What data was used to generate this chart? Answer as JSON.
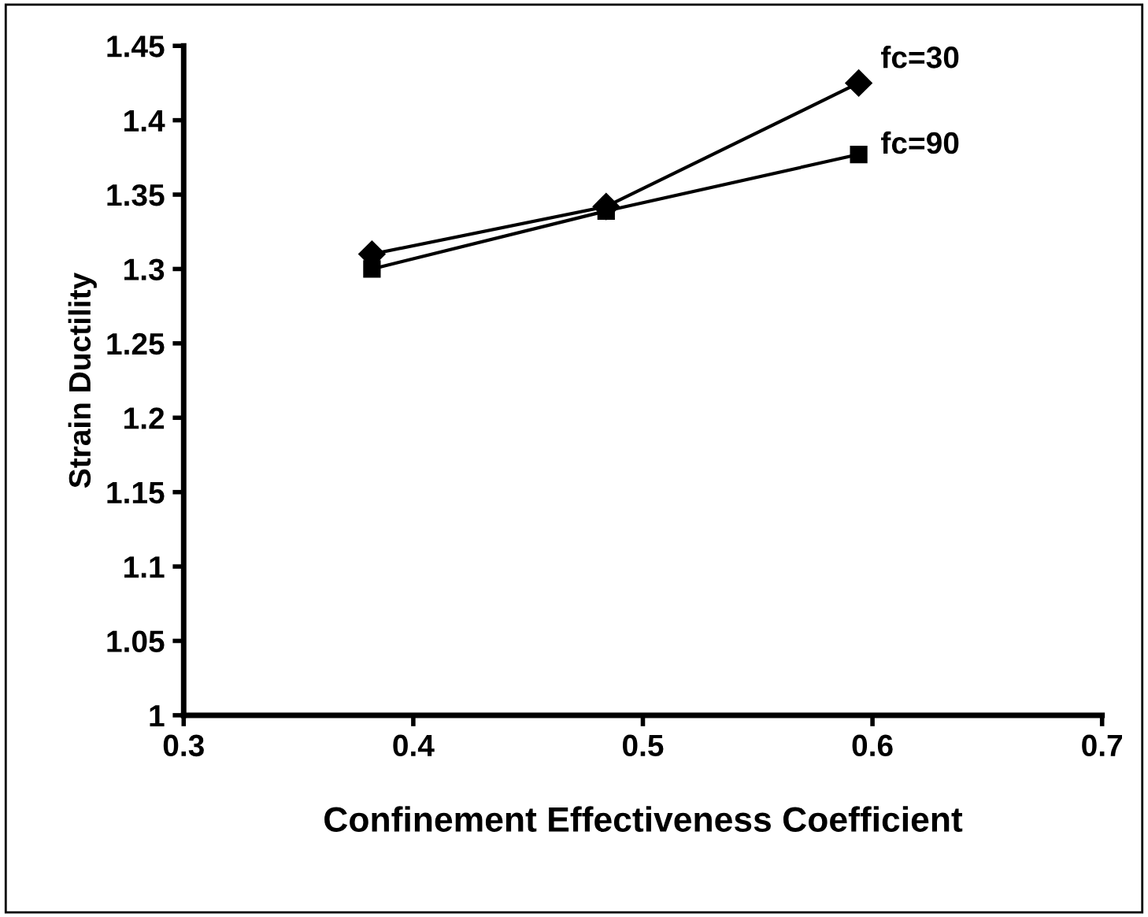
{
  "chart_data": {
    "type": "line",
    "xlabel": "Confinement Effectiveness Coefficient",
    "ylabel": "Strain Ductility",
    "xlim": [
      0.3,
      0.7
    ],
    "xticks": [
      0.3,
      0.4,
      0.5,
      0.6,
      0.7
    ],
    "ylim": [
      1,
      1.45
    ],
    "yticks": [
      1,
      1.05,
      1.1,
      1.15,
      1.2,
      1.25,
      1.3,
      1.35,
      1.4,
      1.45
    ],
    "grid": false,
    "legend": false,
    "line_style": "solid",
    "series": [
      {
        "name": "fc=30",
        "color": "#000000",
        "marker": "diamond",
        "x": [
          0.382,
          0.484,
          0.594
        ],
        "values": [
          1.31,
          1.342,
          1.425
        ]
      },
      {
        "name": "fc=90",
        "color": "#000000",
        "marker": "square",
        "x": [
          0.382,
          0.484,
          0.594
        ],
        "values": [
          1.3,
          1.339,
          1.377
        ]
      }
    ]
  }
}
